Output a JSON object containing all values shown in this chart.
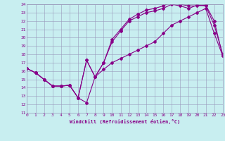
{
  "xlabel": "Windchill (Refroidissement éolien,°C)",
  "bg_color": "#c8eef0",
  "line_color": "#880088",
  "grid_color": "#9999bb",
  "xlim": [
    0,
    23
  ],
  "ylim": [
    11,
    24
  ],
  "xticks": [
    0,
    1,
    2,
    3,
    4,
    5,
    6,
    7,
    8,
    9,
    10,
    11,
    12,
    13,
    14,
    15,
    16,
    17,
    18,
    19,
    20,
    21,
    22,
    23
  ],
  "yticks": [
    11,
    12,
    13,
    14,
    15,
    16,
    17,
    18,
    19,
    20,
    21,
    22,
    23,
    24
  ],
  "series1_x": [
    0,
    1,
    2,
    3,
    4,
    5,
    6,
    7,
    8,
    9,
    10,
    11,
    12,
    13,
    14,
    15,
    16,
    17,
    18,
    19,
    20,
    21,
    22,
    23
  ],
  "series1_y": [
    16.3,
    15.8,
    15.0,
    14.2,
    14.2,
    14.3,
    12.8,
    17.3,
    15.3,
    17.0,
    19.8,
    21.0,
    22.2,
    22.8,
    23.3,
    23.5,
    23.8,
    24.3,
    24.0,
    23.8,
    23.8,
    23.9,
    22.0,
    17.8
  ],
  "series2_x": [
    0,
    1,
    2,
    3,
    4,
    5,
    6,
    7,
    8,
    9,
    10,
    11,
    12,
    13,
    14,
    15,
    16,
    17,
    18,
    19,
    20,
    21,
    22,
    23
  ],
  "series2_y": [
    16.3,
    15.8,
    15.0,
    14.2,
    14.2,
    14.3,
    12.8,
    17.3,
    15.3,
    17.0,
    19.5,
    20.8,
    22.0,
    22.5,
    23.0,
    23.2,
    23.5,
    24.0,
    23.8,
    23.5,
    23.9,
    23.8,
    21.5,
    18.0
  ],
  "series3_x": [
    0,
    1,
    2,
    3,
    4,
    5,
    6,
    7,
    8,
    9,
    10,
    11,
    12,
    13,
    14,
    15,
    16,
    17,
    18,
    19,
    20,
    21,
    22,
    23
  ],
  "series3_y": [
    16.3,
    15.8,
    15.0,
    14.2,
    14.2,
    14.3,
    12.8,
    12.2,
    15.3,
    16.2,
    17.0,
    17.5,
    18.0,
    18.5,
    19.0,
    19.5,
    20.5,
    21.5,
    22.0,
    22.5,
    23.0,
    23.5,
    20.5,
    17.8
  ]
}
